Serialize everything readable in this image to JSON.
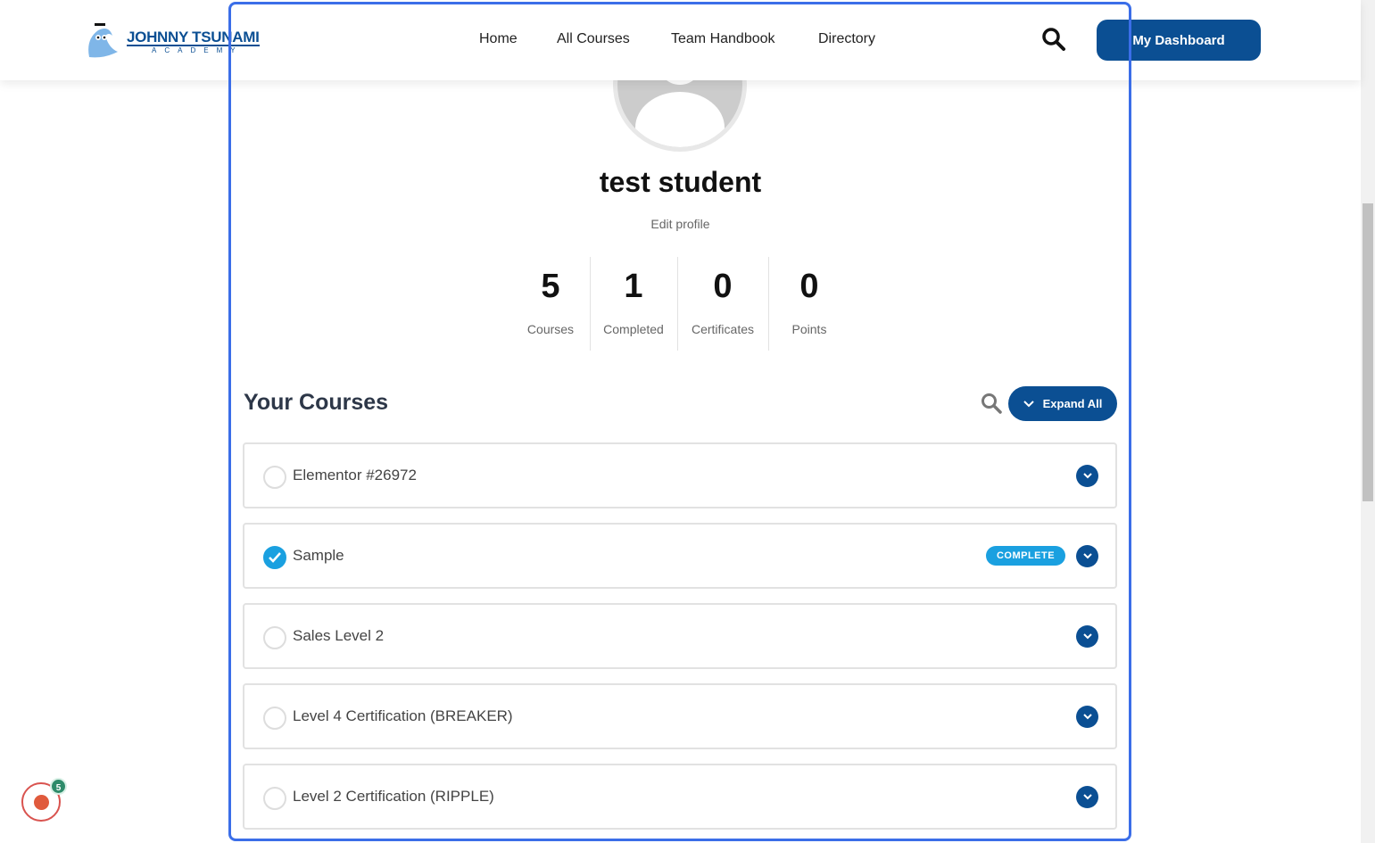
{
  "header": {
    "logo_name": "JOHNNY TSUNAMI",
    "logo_sub": "ACADEMY",
    "nav": [
      "Home",
      "All Courses",
      "Team Handbook",
      "Directory"
    ],
    "dashboard_label": "My Dashboard"
  },
  "profile": {
    "name": "test student",
    "edit_label": "Edit profile",
    "stats": [
      {
        "value": "5",
        "label": "Courses"
      },
      {
        "value": "1",
        "label": "Completed"
      },
      {
        "value": "0",
        "label": "Certificates"
      },
      {
        "value": "0",
        "label": "Points"
      }
    ]
  },
  "courses": {
    "title": "Your Courses",
    "expand_label": "Expand All",
    "items": [
      {
        "title": "Elementor #26972",
        "complete": false
      },
      {
        "title": "Sample",
        "complete": true,
        "badge": "COMPLETE"
      },
      {
        "title": "Sales Level 2",
        "complete": false
      },
      {
        "title": "Level 4 Certification (BREAKER)",
        "complete": false
      },
      {
        "title": "Level 2 Certification (RIPPLE)",
        "complete": false
      }
    ]
  },
  "notification": {
    "count": "5"
  },
  "colors": {
    "brand": "#0b4f93",
    "complete": "#1aa0e0",
    "highlight": "#3b6ee8"
  }
}
